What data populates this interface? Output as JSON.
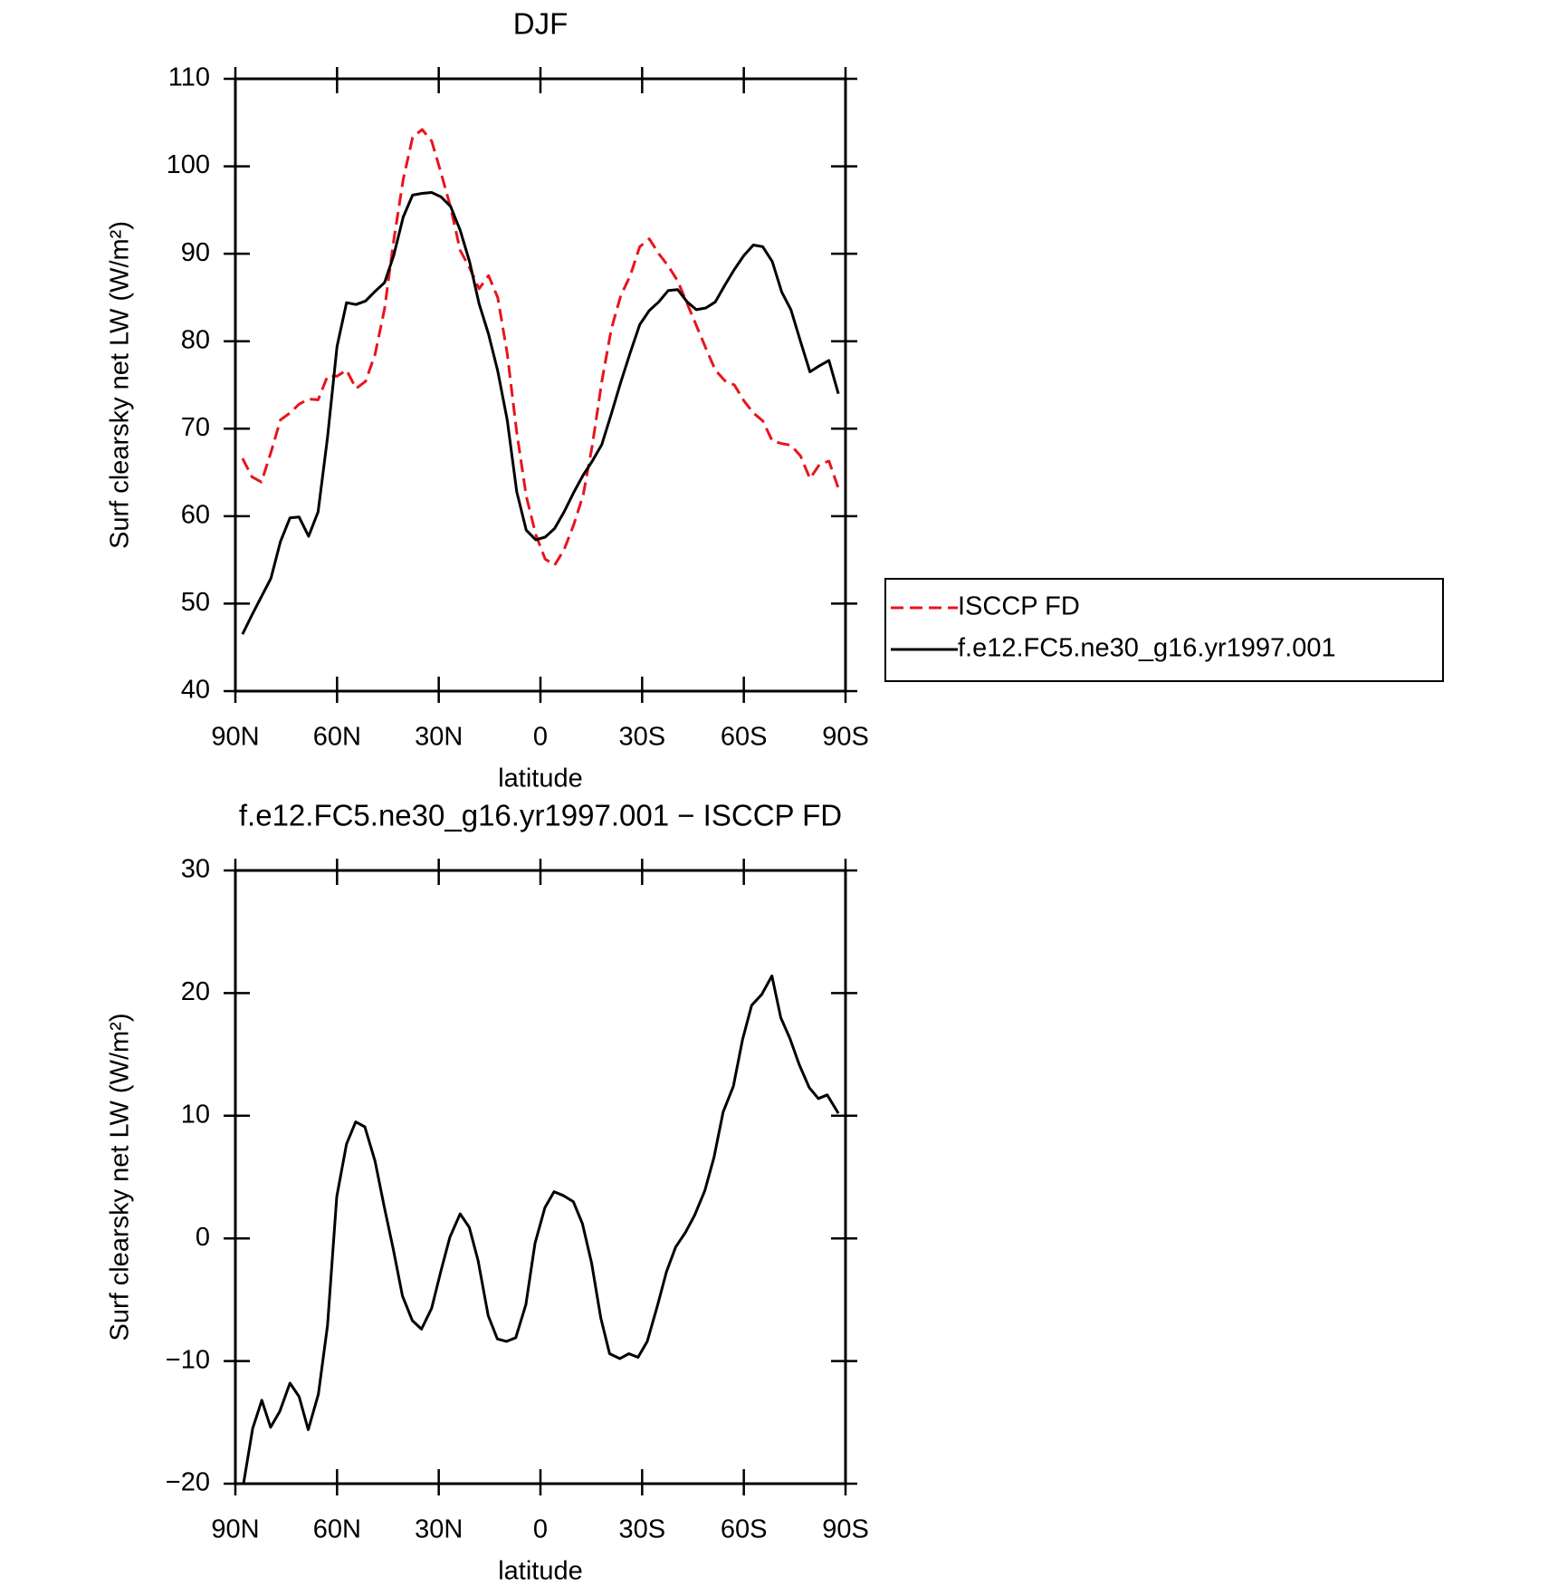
{
  "chart_data": [
    {
      "type": "line",
      "title": "DJF",
      "xlabel": "latitude",
      "ylabel": "Surf clearsky net LW (W/m²)",
      "x": [
        87.9,
        85.1,
        82.3,
        79.5,
        76.7,
        73.9,
        71.2,
        68.4,
        65.6,
        62.8,
        60.0,
        57.2,
        54.4,
        51.6,
        48.8,
        46.0,
        43.3,
        40.5,
        37.7,
        34.9,
        32.1,
        29.3,
        26.5,
        23.7,
        20.9,
        18.1,
        15.3,
        12.6,
        9.8,
        7.0,
        4.2,
        1.4,
        -1.4,
        -4.2,
        -7.0,
        -9.8,
        -12.6,
        -15.3,
        -18.1,
        -20.9,
        -23.7,
        -26.5,
        -29.3,
        -32.1,
        -34.9,
        -37.7,
        -40.5,
        -43.3,
        -46.0,
        -48.8,
        -51.6,
        -54.4,
        -57.2,
        -60.0,
        -62.8,
        -65.6,
        -68.4,
        -71.2,
        -73.9,
        -76.7,
        -79.5,
        -82.3,
        -85.1,
        -87.9
      ],
      "series": [
        {
          "name": "ISCCP FD",
          "color": "#e8141c",
          "dash": "dashed",
          "values": [
            66.6,
            64.5,
            63.9,
            67.3,
            71.0,
            71.8,
            72.8,
            73.4,
            73.3,
            76.0,
            76.0,
            76.7,
            74.6,
            75.4,
            78.5,
            83.7,
            91.5,
            98.5,
            103.3,
            104.2,
            102.9,
            99.2,
            95.3,
            90.4,
            88.4,
            86.0,
            87.5,
            85.0,
            78.6,
            69.6,
            62.3,
            57.9,
            55.1,
            54.4,
            56.2,
            59.0,
            62.4,
            68.1,
            75.4,
            81.4,
            85.2,
            87.5,
            90.8,
            91.7,
            90.0,
            88.6,
            86.9,
            84.3,
            81.8,
            79.2,
            76.7,
            75.5,
            75.0,
            73.2,
            71.8,
            70.9,
            68.6,
            68.3,
            68.1,
            66.9,
            64.3,
            65.9,
            66.3,
            63.2
          ]
        },
        {
          "name": "f.e12.FC5.ne30_g16.yr1997.001",
          "color": "#000000",
          "dash": "solid",
          "values": [
            46.5,
            48.7,
            50.8,
            52.9,
            57.1,
            59.8,
            59.9,
            57.7,
            60.5,
            69.0,
            79.4,
            84.4,
            84.2,
            84.6,
            85.7,
            86.7,
            89.8,
            94.2,
            96.7,
            96.9,
            97.0,
            96.5,
            95.4,
            92.7,
            89.1,
            84.3,
            80.8,
            76.6,
            71.0,
            62.8,
            58.4,
            57.3,
            57.6,
            58.6,
            60.5,
            62.7,
            64.7,
            66.3,
            68.2,
            71.7,
            75.3,
            78.7,
            81.9,
            83.5,
            84.5,
            85.8,
            85.9,
            84.5,
            83.6,
            83.8,
            84.5,
            86.4,
            88.2,
            89.8,
            91.0,
            90.8,
            89.1,
            85.6,
            83.6,
            80.0,
            76.5,
            77.2,
            77.8,
            74.0
          ]
        }
      ],
      "xlim": [
        90,
        -90
      ],
      "xticks": [
        {
          "value": 90,
          "label": "90N"
        },
        {
          "value": 60,
          "label": "60N"
        },
        {
          "value": 30,
          "label": "30N"
        },
        0,
        {
          "value": -30,
          "label": "30S"
        },
        {
          "value": -60,
          "label": "60S"
        },
        {
          "value": -90,
          "label": "90S"
        }
      ],
      "ylim": [
        40,
        110
      ],
      "yticks": [
        40,
        50,
        60,
        70,
        80,
        90,
        100,
        110
      ],
      "legend": "right"
    },
    {
      "type": "line",
      "title": "f.e12.FC5.ne30_g16.yr1997.001 − ISCCP FD",
      "xlabel": "latitude",
      "ylabel": "Surf clearsky net LW (W/m²)",
      "x": [
        87.6,
        84.9,
        82.2,
        79.6,
        76.9,
        73.9,
        71.2,
        68.5,
        65.5,
        62.8,
        60.1,
        57.2,
        54.5,
        51.8,
        48.8,
        46.1,
        43.4,
        40.7,
        37.8,
        35.1,
        32.1,
        29.4,
        26.7,
        23.7,
        21.0,
        18.4,
        15.4,
        12.7,
        10.0,
        7.3,
        4.3,
        1.6,
        -1.3,
        -4.0,
        -6.7,
        -9.7,
        -12.4,
        -15.1,
        -17.8,
        -20.4,
        -23.4,
        -26.1,
        -28.8,
        -31.5,
        -34.5,
        -37.2,
        -39.9,
        -42.8,
        -45.5,
        -48.5,
        -51.2,
        -53.9,
        -56.9,
        -59.6,
        -62.3,
        -65.3,
        -68.3,
        -70.9,
        -73.6,
        -76.3,
        -79.3,
        -82.0,
        -84.6,
        -87.9
      ],
      "color": "#000000",
      "values": [
        -20.0,
        -15.5,
        -13.2,
        -15.4,
        -14.1,
        -11.8,
        -12.9,
        -15.6,
        -12.7,
        -7.1,
        3.4,
        7.7,
        9.5,
        9.1,
        6.3,
        2.6,
        -0.9,
        -4.7,
        -6.7,
        -7.4,
        -5.7,
        -2.7,
        0.1,
        2.0,
        0.9,
        -1.8,
        -6.3,
        -8.2,
        -8.4,
        -8.1,
        -5.4,
        -0.4,
        2.5,
        3.8,
        3.5,
        3.0,
        1.2,
        -2.0,
        -6.5,
        -9.4,
        -9.8,
        -9.4,
        -9.7,
        -8.4,
        -5.5,
        -2.7,
        -0.7,
        0.5,
        1.9,
        3.9,
        6.6,
        10.3,
        12.4,
        16.2,
        19.0,
        19.9,
        21.4,
        18.0,
        16.3,
        14.2,
        12.3,
        11.4,
        11.7,
        10.2
      ],
      "xlim": [
        90,
        -90
      ],
      "xticks": [
        {
          "value": 90,
          "label": "90N"
        },
        {
          "value": 60,
          "label": "60N"
        },
        {
          "value": 30,
          "label": "30N"
        },
        0,
        {
          "value": -30,
          "label": "30S"
        },
        {
          "value": -60,
          "label": "60S"
        },
        {
          "value": -90,
          "label": "90S"
        }
      ],
      "ylim": [
        -20,
        30
      ],
      "yticks": [
        {
          "value": -20,
          "label": "−20"
        },
        {
          "value": -10,
          "label": "−10"
        },
        0,
        10,
        20,
        30
      ]
    }
  ]
}
